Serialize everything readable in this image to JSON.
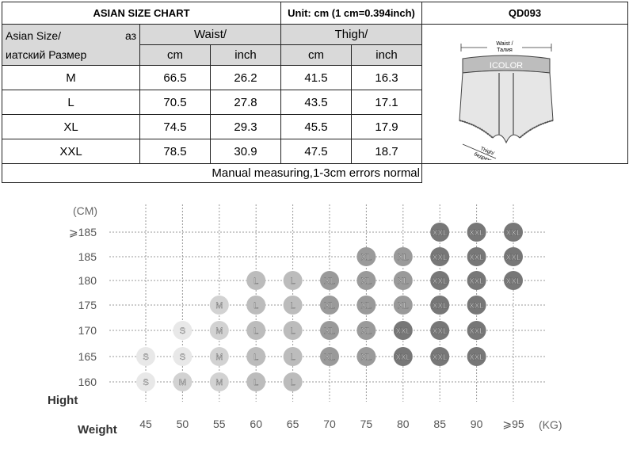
{
  "header": {
    "title": "ASIAN  SIZE CHART",
    "unit": "Unit: cm (1 cm=0.394inch)",
    "code": "QD093"
  },
  "table": {
    "asian_size_label_a": "Asian Size/",
    "asian_size_label_b": "аз",
    "asian_size_label_c": "иатский Размер",
    "waist_label": "Waist/",
    "thigh_label": "Thigh/",
    "cm": "cm",
    "inch": "inch",
    "rows": [
      {
        "size": "M",
        "waist_cm": "66.5",
        "waist_inch": "26.2",
        "thigh_cm": "41.5",
        "thigh_inch": "16.3"
      },
      {
        "size": "L",
        "waist_cm": "70.5",
        "waist_inch": "27.8",
        "thigh_cm": "43.5",
        "thigh_inch": "17.1"
      },
      {
        "size": "XL",
        "waist_cm": "74.5",
        "waist_inch": "29.3",
        "thigh_cm": "45.5",
        "thigh_inch": "17.9"
      },
      {
        "size": "XXL",
        "waist_cm": "78.5",
        "waist_inch": "30.9",
        "thigh_cm": "47.5",
        "thigh_inch": "18.7"
      }
    ],
    "note": "Manual measuring,1-3cm errors normal"
  },
  "garment": {
    "waist_label": "Waist /",
    "waist_label_ru": "Талия",
    "brand": "ICOLOR",
    "thigh_label": "Thigh/",
    "thigh_label_ru": "бедренная кость"
  },
  "chart_data": {
    "type": "table",
    "y_unit": "(CM)",
    "x_unit": "(KG)",
    "y_title": "Hight",
    "x_title": "Weight",
    "heights": [
      "⩾185",
      "185",
      "180",
      "175",
      "170",
      "165",
      "160"
    ],
    "weights": [
      "45",
      "50",
      "55",
      "60",
      "65",
      "70",
      "75",
      "80",
      "85",
      "90",
      "⩾95"
    ],
    "grid": [
      [
        "",
        "",
        "",
        "",
        "",
        "",
        "",
        "",
        "XXL",
        "XXL",
        "XXL"
      ],
      [
        "",
        "",
        "",
        "",
        "",
        "",
        "XL",
        "XL",
        "XXL",
        "XXL",
        "XXL"
      ],
      [
        "",
        "",
        "",
        "L",
        "L",
        "XL",
        "XL",
        "XL",
        "XXL",
        "XXL",
        "XXL"
      ],
      [
        "",
        "",
        "M",
        "L",
        "L",
        "XL",
        "XL",
        "XL",
        "XXL",
        "XXL",
        ""
      ],
      [
        "",
        "S",
        "M",
        "L",
        "L",
        "XL",
        "XL",
        "XXL",
        "XXL",
        "XXL",
        ""
      ],
      [
        "S",
        "S",
        "M",
        "L",
        "L",
        "XL",
        "XL",
        "XXL",
        "XXL",
        "XXL",
        ""
      ],
      [
        "S",
        "M",
        "M",
        "L",
        "L",
        "",
        "",
        "",
        "",
        "",
        ""
      ]
    ],
    "size_colors": {
      "S": "#e8e8e8",
      "M": "#d2d2d2",
      "L": "#bcbcbc",
      "XL": "#9a9a9a",
      "XXL": "#777777"
    }
  }
}
